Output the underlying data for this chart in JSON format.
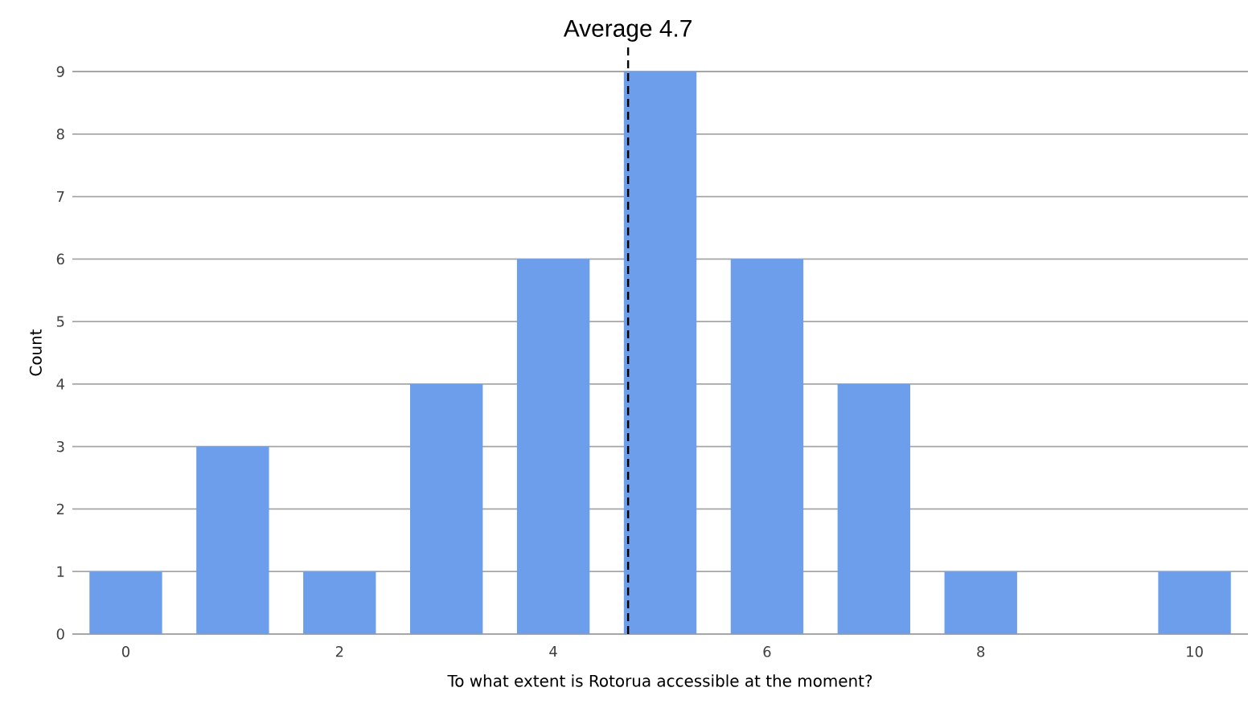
{
  "chart_data": {
    "type": "bar",
    "x": [
      0,
      1,
      2,
      3,
      4,
      5,
      6,
      7,
      8,
      9,
      10
    ],
    "values": [
      1,
      3,
      1,
      4,
      6,
      9,
      6,
      4,
      1,
      0,
      1
    ],
    "color": "#6d9eeb",
    "xlabel": "To what extent is Rotorua accessible at the moment?",
    "ylabel": "Count",
    "xlim": [
      -0.5,
      10.5
    ],
    "ylim": [
      0,
      9
    ],
    "xticks": [
      0,
      2,
      4,
      6,
      8,
      10
    ],
    "yticks": [
      0,
      1,
      2,
      3,
      4,
      5,
      6,
      7,
      8,
      9
    ],
    "grid": "y",
    "ref_lines": [
      {
        "axis": "x",
        "value": 4.7,
        "label": "Average 4.7",
        "color": "#000000",
        "line_style": "dashed"
      }
    ]
  }
}
